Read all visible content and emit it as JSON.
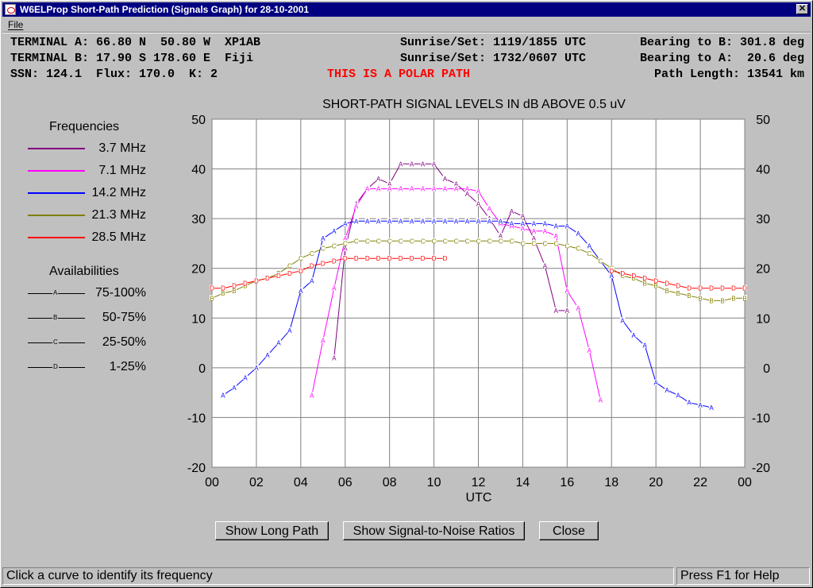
{
  "window": {
    "title": "W6ELProp Short-Path Prediction (Signals Graph) for 28-10-2001"
  },
  "menu": {
    "file": "File"
  },
  "info": {
    "terminal_a": "TERMINAL A: 66.80 N  50.80 W  XP1AB",
    "terminal_b": "TERMINAL B: 17.90 S 178.60 E  Fiji",
    "params": "SSN: 124.1  Flux: 170.0  K: 2",
    "sun_a": "Sunrise/Set: 1119/1855 UTC",
    "sun_b": "Sunrise/Set: 1732/0607 UTC",
    "bearing_b": "Bearing to B: 301.8 deg",
    "bearing_a": "Bearing to A:  20.6 deg",
    "polar": "THIS IS A POLAR PATH",
    "path_length": "Path Length: 13541 km"
  },
  "legend": {
    "freq_title": "Frequencies",
    "avail_title": "Availabilities",
    "frequencies": [
      {
        "label": "3.7 MHz",
        "color": "#800080"
      },
      {
        "label": "7.1 MHz",
        "color": "#ff00ff"
      },
      {
        "label": "14.2 MHz",
        "color": "#0000ff"
      },
      {
        "label": "21.3 MHz",
        "color": "#808000"
      },
      {
        "label": "28.5 MHz",
        "color": "#ff0000"
      }
    ],
    "availabilities": [
      {
        "code": "A",
        "label": "75-100%"
      },
      {
        "code": "B",
        "label": "50-75%"
      },
      {
        "code": "C",
        "label": "25-50%"
      },
      {
        "code": "D",
        "label": "1-25%"
      }
    ]
  },
  "chart_data": {
    "type": "line",
    "title": "SHORT-PATH SIGNAL LEVELS IN dB ABOVE 0.5 uV",
    "xlabel": "UTC",
    "ylabel": "",
    "xlim": [
      0,
      24
    ],
    "ylim": [
      -20,
      50
    ],
    "x_ticks": [
      "00",
      "02",
      "04",
      "06",
      "08",
      "10",
      "12",
      "14",
      "16",
      "18",
      "20",
      "22",
      "00"
    ],
    "y_ticks": [
      "50",
      "40",
      "30",
      "20",
      "10",
      "0",
      "-10",
      "-20"
    ],
    "grid": true,
    "series": [
      {
        "name": "3.7 MHz",
        "color": "#800080",
        "points": [
          [
            5.5,
            2,
            "A"
          ],
          [
            6,
            24,
            "A"
          ],
          [
            6.5,
            33,
            "A"
          ],
          [
            7,
            36,
            "A"
          ],
          [
            7.5,
            38,
            "A"
          ],
          [
            8,
            37,
            "A"
          ],
          [
            8.5,
            41,
            "A"
          ],
          [
            9,
            41,
            "A"
          ],
          [
            9.5,
            41,
            "A"
          ],
          [
            10,
            41,
            "A"
          ],
          [
            10.5,
            38,
            "A"
          ],
          [
            11,
            37,
            "A"
          ],
          [
            11.5,
            35,
            "A"
          ],
          [
            12,
            33,
            "A"
          ],
          [
            12.5,
            30,
            "A"
          ],
          [
            13,
            26.5,
            "A"
          ],
          [
            13.5,
            31.5,
            "A"
          ],
          [
            14,
            30.5,
            "A"
          ],
          [
            14.5,
            26,
            "A"
          ],
          [
            15,
            20.5,
            "A"
          ],
          [
            15.5,
            11.5,
            "A"
          ],
          [
            16,
            11.5,
            "A"
          ]
        ]
      },
      {
        "name": "7.1 MHz",
        "color": "#ff00ff",
        "points": [
          [
            4.5,
            -5.5,
            "A"
          ],
          [
            5,
            5.5,
            "A"
          ],
          [
            5.5,
            16,
            "A"
          ],
          [
            6,
            26,
            "A"
          ],
          [
            6.5,
            32.5,
            "A"
          ],
          [
            7,
            36,
            "A"
          ],
          [
            7.5,
            36,
            "A"
          ],
          [
            8,
            36,
            "A"
          ],
          [
            8.5,
            36,
            "A"
          ],
          [
            9,
            36,
            "A"
          ],
          [
            9.5,
            36,
            "A"
          ],
          [
            10,
            36,
            "A"
          ],
          [
            10.5,
            36,
            "A"
          ],
          [
            11,
            36,
            "A"
          ],
          [
            11.5,
            36,
            "A"
          ],
          [
            12,
            35.5,
            "A"
          ],
          [
            12.5,
            32,
            "A"
          ],
          [
            13,
            29,
            "A"
          ],
          [
            13.5,
            28.5,
            "A"
          ],
          [
            14,
            28,
            "A"
          ],
          [
            14.5,
            27.5,
            "A"
          ],
          [
            15,
            27.5,
            "A"
          ],
          [
            15.5,
            26.5,
            "A"
          ],
          [
            16,
            15.5,
            "A"
          ],
          [
            16.5,
            12,
            "A"
          ],
          [
            17,
            3.5,
            "A"
          ],
          [
            17.5,
            -6.5,
            "A"
          ]
        ]
      },
      {
        "name": "14.2 MHz",
        "color": "#0000ff",
        "points": [
          [
            0.5,
            -5.5,
            "A"
          ],
          [
            1,
            -4,
            "A"
          ],
          [
            1.5,
            -2,
            "A"
          ],
          [
            2,
            0,
            "A"
          ],
          [
            2.5,
            2.5,
            "A"
          ],
          [
            3,
            5,
            "A"
          ],
          [
            3.5,
            7.5,
            "A"
          ],
          [
            4,
            15.5,
            "A"
          ],
          [
            4.5,
            17.5,
            "A"
          ],
          [
            5,
            26,
            "A"
          ],
          [
            5.5,
            27.5,
            "A"
          ],
          [
            6,
            29,
            "A"
          ],
          [
            6.5,
            29.5,
            "A"
          ],
          [
            7,
            29.5,
            "A"
          ],
          [
            7.5,
            29.5,
            "A"
          ],
          [
            8,
            29.5,
            "A"
          ],
          [
            8.5,
            29.5,
            "A"
          ],
          [
            9,
            29.5,
            "A"
          ],
          [
            9.5,
            29.5,
            "A"
          ],
          [
            10,
            29.5,
            "A"
          ],
          [
            10.5,
            29.5,
            "A"
          ],
          [
            11,
            29.5,
            "A"
          ],
          [
            11.5,
            29.5,
            "A"
          ],
          [
            12,
            29.5,
            "A"
          ],
          [
            12.5,
            29.5,
            "A"
          ],
          [
            13,
            29.5,
            "A"
          ],
          [
            13.5,
            29,
            "A"
          ],
          [
            14,
            29,
            "A"
          ],
          [
            14.5,
            29,
            "A"
          ],
          [
            15,
            29,
            "A"
          ],
          [
            15.5,
            28.5,
            "A"
          ],
          [
            16,
            28.5,
            "A"
          ],
          [
            16.5,
            27,
            "A"
          ],
          [
            17,
            24.5,
            "A"
          ],
          [
            17.5,
            21.5,
            "A"
          ],
          [
            18,
            18.5,
            "A"
          ],
          [
            18.5,
            9.5,
            "A"
          ],
          [
            19,
            6.5,
            "A"
          ],
          [
            19.5,
            4.5,
            "A"
          ],
          [
            20,
            -3,
            "A"
          ],
          [
            20.5,
            -4.5,
            "A"
          ],
          [
            21,
            -5.5,
            "A"
          ],
          [
            21.5,
            -7,
            "A"
          ],
          [
            22,
            -7.5,
            "A"
          ],
          [
            22.5,
            -8,
            "A"
          ]
        ]
      },
      {
        "name": "21.3 MHz",
        "color": "#808000",
        "points": [
          [
            0,
            14,
            "B"
          ],
          [
            0.5,
            15,
            "B"
          ],
          [
            1,
            15.5,
            "B"
          ],
          [
            1.5,
            16.5,
            "B"
          ],
          [
            2,
            17.5,
            "B"
          ],
          [
            2.5,
            18,
            "B"
          ],
          [
            3,
            19,
            "B"
          ],
          [
            3.5,
            20.5,
            "C"
          ],
          [
            4,
            22,
            "C"
          ],
          [
            4.5,
            23,
            "C"
          ],
          [
            5,
            24,
            "C"
          ],
          [
            5.5,
            24.5,
            "C"
          ],
          [
            6,
            25,
            "C"
          ],
          [
            6.5,
            25.5,
            "C"
          ],
          [
            7,
            25.5,
            "C"
          ],
          [
            7.5,
            25.5,
            "C"
          ],
          [
            8,
            25.5,
            "C"
          ],
          [
            8.5,
            25.5,
            "C"
          ],
          [
            9,
            25.5,
            "C"
          ],
          [
            9.5,
            25.5,
            "C"
          ],
          [
            10,
            25.5,
            "C"
          ],
          [
            10.5,
            25.5,
            "C"
          ],
          [
            11,
            25.5,
            "C"
          ],
          [
            11.5,
            25.5,
            "C"
          ],
          [
            12,
            25.5,
            "C"
          ],
          [
            12.5,
            25.5,
            "C"
          ],
          [
            13,
            25.5,
            "C"
          ],
          [
            13.5,
            25.5,
            "C"
          ],
          [
            14,
            25,
            "C"
          ],
          [
            14.5,
            25,
            "C"
          ],
          [
            15,
            25,
            "C"
          ],
          [
            15.5,
            25,
            "C"
          ],
          [
            16,
            24.5,
            "C"
          ],
          [
            16.5,
            24,
            "C"
          ],
          [
            17,
            23,
            "C"
          ],
          [
            17.5,
            21.5,
            "C"
          ],
          [
            18,
            20,
            "C"
          ],
          [
            18.5,
            18.5,
            "C"
          ],
          [
            19,
            18,
            "B"
          ],
          [
            19.5,
            17,
            "B"
          ],
          [
            20,
            16.5,
            "B"
          ],
          [
            20.5,
            15.5,
            "B"
          ],
          [
            21,
            15,
            "B"
          ],
          [
            21.5,
            14.5,
            "B"
          ],
          [
            22,
            14,
            "B"
          ],
          [
            22.5,
            13.5,
            "B"
          ],
          [
            23,
            13.5,
            "B"
          ],
          [
            23.5,
            14,
            "B"
          ],
          [
            24,
            14,
            "B"
          ]
        ]
      },
      {
        "name": "28.5 MHz",
        "color": "#ff0000",
        "points": [
          [
            0,
            16,
            "D"
          ],
          [
            0.5,
            16,
            "D"
          ],
          [
            1,
            16.5,
            "D"
          ],
          [
            1.5,
            17,
            "D"
          ],
          [
            2,
            17.5,
            "D"
          ],
          [
            2.5,
            18,
            "D"
          ],
          [
            3,
            18.5,
            "D"
          ],
          [
            3.5,
            19,
            "D"
          ],
          [
            4,
            19.5,
            "D"
          ],
          [
            4.5,
            20.5,
            "D"
          ],
          [
            5,
            21,
            "D"
          ],
          [
            5.5,
            21.5,
            "D"
          ],
          [
            6,
            22,
            "D"
          ],
          [
            6.5,
            22,
            "D"
          ],
          [
            7,
            22,
            "D"
          ],
          [
            7.5,
            22,
            "D"
          ],
          [
            8,
            22,
            "D"
          ],
          [
            8.5,
            22,
            "D"
          ],
          [
            9,
            22,
            "D"
          ],
          [
            9.5,
            22,
            "D"
          ],
          [
            10,
            22,
            "D"
          ],
          [
            10.5,
            22,
            "D"
          ],
          [
            18,
            19.5,
            "D"
          ],
          [
            18.5,
            19,
            "D"
          ],
          [
            19,
            18.5,
            "D"
          ],
          [
            19.5,
            18,
            "D"
          ],
          [
            20,
            17.5,
            "D"
          ],
          [
            20.5,
            17,
            "D"
          ],
          [
            21,
            16.5,
            "D"
          ],
          [
            21.5,
            16,
            "D"
          ],
          [
            22,
            16,
            "D"
          ],
          [
            22.5,
            16,
            "D"
          ],
          [
            23,
            16,
            "D"
          ],
          [
            23.5,
            16,
            "D"
          ],
          [
            24,
            16,
            "D"
          ]
        ]
      }
    ]
  },
  "buttons": {
    "long_path": "Show Long Path",
    "snr": "Show Signal-to-Noise Ratios",
    "close": "Close"
  },
  "status": {
    "left": "Click a curve to identify its frequency",
    "right": "Press F1 for Help"
  }
}
